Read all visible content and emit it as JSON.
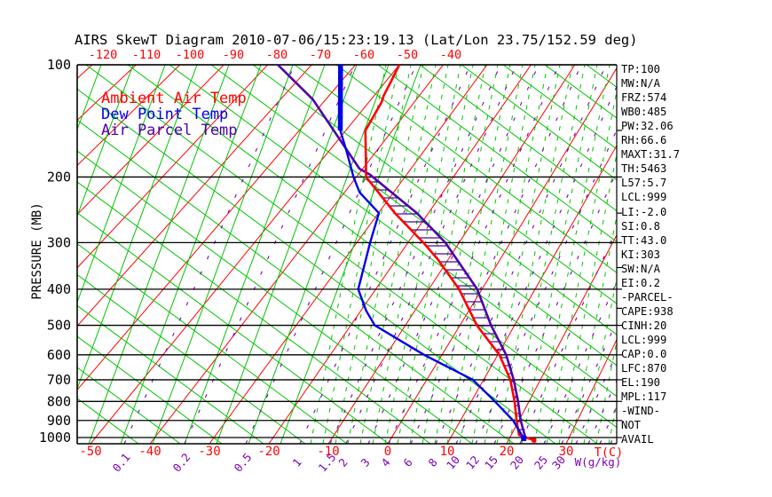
{
  "chart_data": {
    "type": "line",
    "title": "AIRS SkewT Diagram 2010-07-06/15:23:19.13 (Lat/Lon 23.75/152.59 deg)",
    "x_axis": {
      "label": "T(C)",
      "bottom_ticks_c": [
        -50,
        -40,
        -30,
        -20,
        -10,
        0,
        10,
        20,
        30
      ],
      "top_ticks_c": [
        -120,
        -110,
        -100,
        -90,
        -80,
        -70,
        -60,
        -50,
        -40
      ]
    },
    "y_axis": {
      "label": "PRESSURE (MB)",
      "scale": "log",
      "ticks_mb": [
        100,
        200,
        300,
        400,
        500,
        600,
        700,
        800,
        900,
        1000
      ],
      "range_mb": [
        100,
        1050
      ]
    },
    "mixing_ratio": {
      "label": "W(g/kg)",
      "ticks_gkg": [
        0.1,
        0.2,
        0.5,
        1,
        1.5,
        2,
        3,
        4,
        6,
        8,
        10,
        12,
        15,
        20,
        25,
        30
      ]
    },
    "series": [
      {
        "name": "Ambient Air Temp",
        "color": "#ff0000",
        "points_mb_c": [
          [
            100,
            -50
          ],
          [
            112,
            -48.7
          ],
          [
            121,
            -47.9
          ],
          [
            126,
            -47.2
          ],
          [
            150,
            -45.8
          ],
          [
            200,
            -38.0
          ],
          [
            250,
            -26.7
          ],
          [
            300,
            -17.0
          ],
          [
            332,
            -12.1
          ],
          [
            400,
            -4.3
          ],
          [
            500,
            3.1
          ],
          [
            600,
            10.3
          ],
          [
            700,
            14.7
          ],
          [
            800,
            17.5
          ],
          [
            900,
            19.6
          ],
          [
            984,
            21.3
          ],
          [
            1017,
            24.3
          ]
        ]
      },
      {
        "name": "Dew Point Temp",
        "color": "#0000e8",
        "points_mb_c": [
          [
            100,
            -63.4
          ],
          [
            150,
            -51.2
          ],
          [
            170,
            -46.4
          ],
          [
            200,
            -40.6
          ],
          [
            220,
            -36.9
          ],
          [
            250,
            -29.9
          ],
          [
            300,
            -27.4
          ],
          [
            400,
            -23.3
          ],
          [
            457,
            -19.0
          ],
          [
            500,
            -15.6
          ],
          [
            600,
            -3.2
          ],
          [
            700,
            8.1
          ],
          [
            800,
            14.1
          ],
          [
            900,
            19.0
          ],
          [
            1005,
            22.4
          ]
        ]
      },
      {
        "name": "Air Parcel Temp",
        "color": "#4e00a8",
        "points_mb_c": [
          [
            100,
            -77.7
          ],
          [
            124,
            -62.8
          ],
          [
            150,
            -52.6
          ],
          [
            190,
            -40.7
          ],
          [
            197,
            -37.6
          ],
          [
            250,
            -22.3
          ],
          [
            300,
            -12.7
          ],
          [
            400,
            -0.9
          ],
          [
            500,
            5.7
          ],
          [
            600,
            11.5
          ],
          [
            700,
            15.3
          ],
          [
            800,
            18.1
          ],
          [
            900,
            20.3
          ],
          [
            995,
            22.5
          ]
        ]
      }
    ],
    "cape_hatch_between_mb": [
      200,
      940
    ],
    "grid_colors": {
      "isotherm": "#ff0000",
      "adiabat": "#00c400",
      "mixing": "#7a00b4",
      "pressure": "#000000"
    }
  },
  "stats": {
    "items": [
      "TP:100",
      "MW:N/A",
      "FRZ:574",
      "WB0:485",
      "PW:32.06",
      "RH:66.6",
      "MAXT:31.7",
      "TH:5463",
      "L57:5.7",
      "LCL:999",
      "LI:-2.0",
      "SI:0.8",
      "TT:43.0",
      "KI:303",
      "SW:N/A",
      "EI:0.2",
      "-PARCEL-",
      "CAPE:938",
      "CINH:20",
      "LCL:999",
      "CAP:0.0",
      "LFC:870",
      "EL:190",
      "MPL:117",
      "-WIND-",
      "NOT",
      "AVAIL"
    ]
  }
}
